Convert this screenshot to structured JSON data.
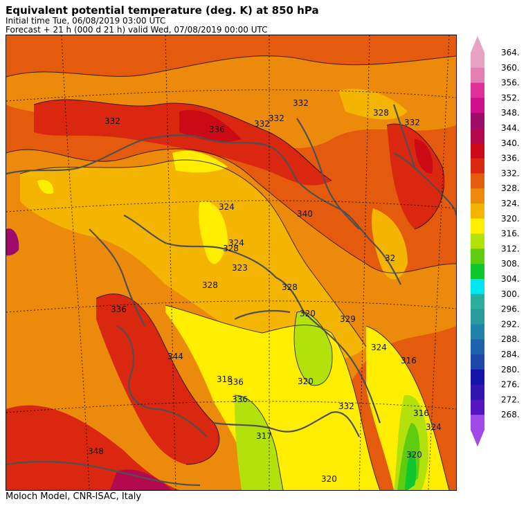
{
  "header": {
    "title": "Equivalent potential temperature (deg. K) at 850 hPa",
    "initial_time": "Initial time  Tue, 06/08/2019  03:00 UTC",
    "forecast": "Forecast  +  21 h  (000 d 21 h)  valid Wed, 07/08/2019 00:00 UTC"
  },
  "footer": {
    "credit": "Moloch Model, CNR-ISAC, Italy"
  },
  "colorbar": {
    "levels": [
      "364.",
      "360.",
      "356.",
      "352.",
      "348.",
      "344.",
      "340.",
      "336.",
      "332.",
      "328.",
      "324.",
      "320.",
      "316.",
      "312.",
      "308.",
      "304.",
      "300.",
      "296.",
      "292.",
      "288.",
      "284.",
      "280.",
      "276.",
      "272.",
      "268."
    ],
    "colors": [
      "#e8a3c3",
      "#e37fb3",
      "#e0309a",
      "#cf0f8e",
      "#9e0b6a",
      "#b3094f",
      "#cc0a15",
      "#d9280f",
      "#e45b0e",
      "#ec8a0c",
      "#f3b402",
      "#ffee00",
      "#b3e10c",
      "#5fcc10",
      "#0ec82e",
      "#00e6f5",
      "#2cae9c",
      "#2a9a9e",
      "#2183ac",
      "#1d62ac",
      "#1c47a8",
      "#1414aa",
      "#3015b0",
      "#5315c0",
      "#a04aea"
    ]
  },
  "map": {
    "contour_labels": [
      "332",
      "332",
      "336",
      "332",
      "332",
      "328",
      "332",
      "324",
      "328",
      "324",
      "340",
      "323",
      "328",
      "320",
      "32",
      "329",
      "324",
      "316",
      "318",
      "320",
      "316",
      "317",
      "320",
      "320",
      "324",
      "328",
      "336",
      "336",
      "344",
      "332",
      "348",
      "336"
    ]
  }
}
